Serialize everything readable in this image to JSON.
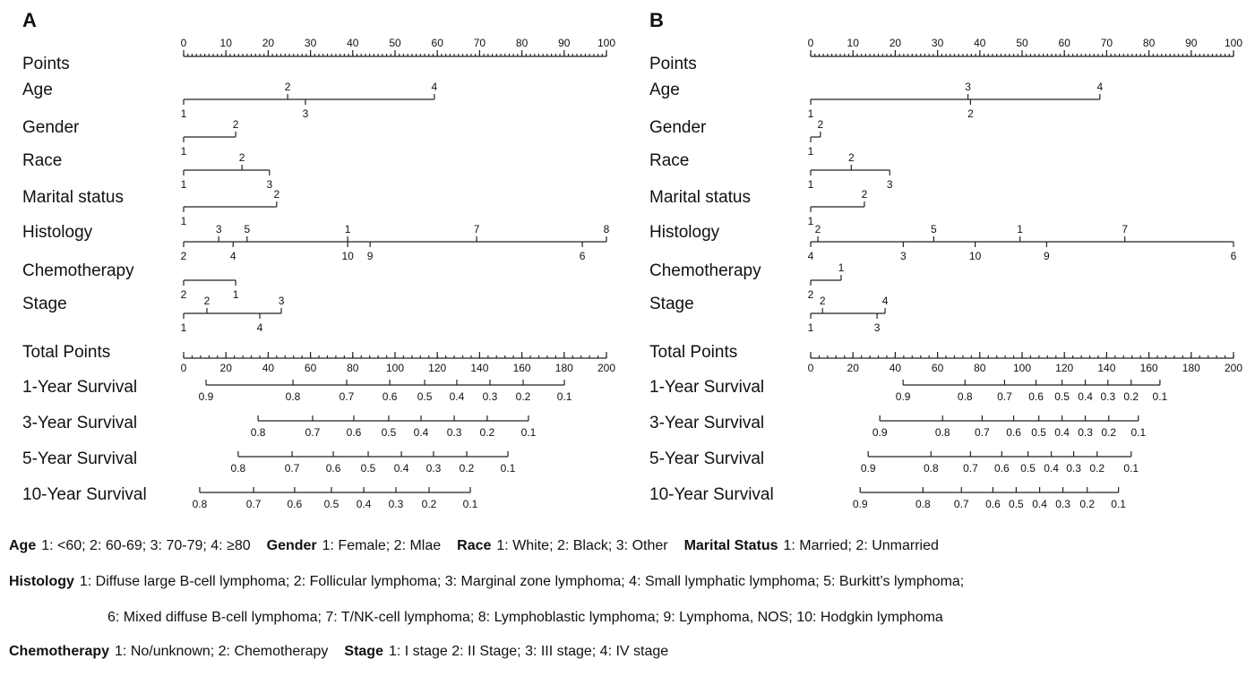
{
  "chart_data": [
    {
      "type": "nomogram",
      "panel": "A",
      "points_axis": {
        "label": "Points",
        "xlim": [
          0,
          100
        ],
        "xticks": [
          0,
          10,
          20,
          30,
          40,
          50,
          60,
          70,
          80,
          90,
          100
        ],
        "minor_step": 1
      },
      "variables": [
        {
          "name": "Age",
          "levels": [
            {
              "label": "1",
              "points": 0,
              "side": "below"
            },
            {
              "label": "2",
              "points": 24.6,
              "side": "above"
            },
            {
              "label": "3",
              "points": 28.8,
              "side": "below"
            },
            {
              "label": "4",
              "points": 59.3,
              "side": "above"
            }
          ]
        },
        {
          "name": "Gender",
          "levels": [
            {
              "label": "1",
              "points": 0,
              "side": "below"
            },
            {
              "label": "2",
              "points": 12.3,
              "side": "above"
            }
          ]
        },
        {
          "name": "Race",
          "levels": [
            {
              "label": "1",
              "points": 0,
              "side": "below"
            },
            {
              "label": "2",
              "points": 13.8,
              "side": "above"
            },
            {
              "label": "3",
              "points": 20.3,
              "side": "below"
            }
          ]
        },
        {
          "name": "Marital status",
          "levels": [
            {
              "label": "1",
              "points": 0,
              "side": "below"
            },
            {
              "label": "2",
              "points": 22,
              "side": "above"
            }
          ]
        },
        {
          "name": "Histology",
          "levels": [
            {
              "label": "2",
              "points": 0,
              "side": "below"
            },
            {
              "label": "3",
              "points": 8.3,
              "side": "above"
            },
            {
              "label": "4",
              "points": 11.7,
              "side": "below"
            },
            {
              "label": "5",
              "points": 15,
              "side": "above"
            },
            {
              "label": "1",
              "points": 38.8,
              "side": "above"
            },
            {
              "label": "10",
              "points": 38.8,
              "side": "below"
            },
            {
              "label": "9",
              "points": 44.1,
              "side": "below"
            },
            {
              "label": "7",
              "points": 69.3,
              "side": "above"
            },
            {
              "label": "6",
              "points": 94.3,
              "side": "below"
            },
            {
              "label": "8",
              "points": 100,
              "side": "above"
            }
          ]
        },
        {
          "name": "Chemotherapy",
          "levels": [
            {
              "label": "2",
              "points": 0,
              "side": "below"
            },
            {
              "label": "1",
              "points": 12.3,
              "side": "below"
            }
          ]
        },
        {
          "name": "Stage",
          "levels": [
            {
              "label": "1",
              "points": 0,
              "side": "below"
            },
            {
              "label": "2",
              "points": 5.5,
              "side": "above"
            },
            {
              "label": "4",
              "points": 18,
              "side": "below"
            },
            {
              "label": "3",
              "points": 23.1,
              "side": "above"
            }
          ]
        }
      ],
      "total_axis": {
        "label": "Total Points",
        "xlim": [
          0,
          200
        ],
        "xticks": [
          0,
          20,
          40,
          60,
          80,
          100,
          120,
          140,
          160,
          180,
          200
        ],
        "minor_step": 4
      },
      "scales": [
        {
          "name": "1-Year Survival",
          "ticks": [
            {
              "value": 0.9,
              "points": 10.6
            },
            {
              "value": 0.8,
              "points": 51.7
            },
            {
              "value": 0.7,
              "points": 77.1
            },
            {
              "value": 0.6,
              "points": 97.5
            },
            {
              "value": 0.5,
              "points": 114
            },
            {
              "value": 0.4,
              "points": 129.2
            },
            {
              "value": 0.3,
              "points": 144.9
            },
            {
              "value": 0.2,
              "points": 160.6
            },
            {
              "value": 0.1,
              "points": 180.1
            }
          ]
        },
        {
          "name": "3-Year Survival",
          "ticks": [
            {
              "value": 0.8,
              "points": 35.2
            },
            {
              "value": 0.7,
              "points": 61
            },
            {
              "value": 0.6,
              "points": 80.5
            },
            {
              "value": 0.5,
              "points": 97
            },
            {
              "value": 0.4,
              "points": 112.3
            },
            {
              "value": 0.3,
              "points": 128
            },
            {
              "value": 0.2,
              "points": 143.6
            },
            {
              "value": 0.1,
              "points": 163.1
            }
          ]
        },
        {
          "name": "5-Year Survival",
          "ticks": [
            {
              "value": 0.8,
              "points": 25.8
            },
            {
              "value": 0.7,
              "points": 51.3
            },
            {
              "value": 0.6,
              "points": 70.8
            },
            {
              "value": 0.5,
              "points": 87.3
            },
            {
              "value": 0.4,
              "points": 103
            },
            {
              "value": 0.3,
              "points": 118.2
            },
            {
              "value": 0.2,
              "points": 133.9
            },
            {
              "value": 0.1,
              "points": 153.4
            }
          ]
        },
        {
          "name": "10-Year Survival",
          "ticks": [
            {
              "value": 0.8,
              "points": 7.6
            },
            {
              "value": 0.7,
              "points": 33.1
            },
            {
              "value": 0.6,
              "points": 52.5
            },
            {
              "value": 0.5,
              "points": 69.9
            },
            {
              "value": 0.4,
              "points": 85.2
            },
            {
              "value": 0.3,
              "points": 100.4
            },
            {
              "value": 0.2,
              "points": 116.1
            },
            {
              "value": 0.1,
              "points": 135.6
            }
          ]
        }
      ]
    },
    {
      "type": "nomogram",
      "panel": "B",
      "points_axis": {
        "label": "Points",
        "xlim": [
          0,
          100
        ],
        "xticks": [
          0,
          10,
          20,
          30,
          40,
          50,
          60,
          70,
          80,
          90,
          100
        ],
        "minor_step": 1
      },
      "variables": [
        {
          "name": "Age",
          "levels": [
            {
              "label": "1",
              "points": 0,
              "side": "below"
            },
            {
              "label": "3",
              "points": 37.2,
              "side": "above"
            },
            {
              "label": "2",
              "points": 37.8,
              "side": "below"
            },
            {
              "label": "4",
              "points": 68.4,
              "side": "above"
            }
          ]
        },
        {
          "name": "Gender",
          "levels": [
            {
              "label": "1",
              "points": 0,
              "side": "below"
            },
            {
              "label": "2",
              "points": 2.3,
              "side": "above"
            }
          ]
        },
        {
          "name": "Race",
          "levels": [
            {
              "label": "1",
              "points": 0,
              "side": "below"
            },
            {
              "label": "2",
              "points": 9.6,
              "side": "above"
            },
            {
              "label": "3",
              "points": 18.7,
              "side": "below"
            }
          ]
        },
        {
          "name": "Marital status",
          "levels": [
            {
              "label": "1",
              "points": 0,
              "side": "below"
            },
            {
              "label": "2",
              "points": 12.7,
              "side": "above"
            }
          ]
        },
        {
          "name": "Histology",
          "levels": [
            {
              "label": "4",
              "points": 0,
              "side": "below"
            },
            {
              "label": "2",
              "points": 1.7,
              "side": "above"
            },
            {
              "label": "3",
              "points": 21.9,
              "side": "below"
            },
            {
              "label": "5",
              "points": 29.1,
              "side": "above"
            },
            {
              "label": "10",
              "points": 38.9,
              "side": "below"
            },
            {
              "label": "1",
              "points": 49.5,
              "side": "above"
            },
            {
              "label": "9",
              "points": 55.8,
              "side": "below"
            },
            {
              "label": "7",
              "points": 74.3,
              "side": "above"
            },
            {
              "label": "6",
              "points": 100,
              "side": "below"
            }
          ]
        },
        {
          "name": "Chemotherapy",
          "levels": [
            {
              "label": "2",
              "points": 0,
              "side": "below"
            },
            {
              "label": "1",
              "points": 7.2,
              "side": "above"
            }
          ]
        },
        {
          "name": "Stage",
          "levels": [
            {
              "label": "1",
              "points": 0,
              "side": "below"
            },
            {
              "label": "2",
              "points": 2.8,
              "side": "above"
            },
            {
              "label": "3",
              "points": 15.7,
              "side": "below"
            },
            {
              "label": "4",
              "points": 17.6,
              "side": "above"
            }
          ]
        }
      ],
      "total_axis": {
        "label": "Total Points",
        "xlim": [
          0,
          200
        ],
        "xticks": [
          0,
          20,
          40,
          60,
          80,
          100,
          120,
          140,
          160,
          180,
          200
        ],
        "minor_step": 4
      },
      "scales": [
        {
          "name": "1-Year Survival",
          "ticks": [
            {
              "value": 0.9,
              "points": 43.7
            },
            {
              "value": 0.8,
              "points": 73
            },
            {
              "value": 0.7,
              "points": 91.7
            },
            {
              "value": 0.6,
              "points": 106.6
            },
            {
              "value": 0.5,
              "points": 118.9
            },
            {
              "value": 0.4,
              "points": 129.9
            },
            {
              "value": 0.3,
              "points": 140.6
            },
            {
              "value": 0.2,
              "points": 151.6
            },
            {
              "value": 0.1,
              "points": 165.2
            }
          ]
        },
        {
          "name": "3-Year Survival",
          "ticks": [
            {
              "value": 0.9,
              "points": 32.7
            },
            {
              "value": 0.8,
              "points": 62.4
            },
            {
              "value": 0.7,
              "points": 81.1
            },
            {
              "value": 0.6,
              "points": 96
            },
            {
              "value": 0.5,
              "points": 107.9
            },
            {
              "value": 0.4,
              "points": 118.9
            },
            {
              "value": 0.3,
              "points": 129.9
            },
            {
              "value": 0.2,
              "points": 141
            },
            {
              "value": 0.1,
              "points": 155
            }
          ]
        },
        {
          "name": "5-Year Survival",
          "ticks": [
            {
              "value": 0.9,
              "points": 27.2
            },
            {
              "value": 0.8,
              "points": 56.9
            },
            {
              "value": 0.7,
              "points": 75.6
            },
            {
              "value": 0.6,
              "points": 90.4
            },
            {
              "value": 0.5,
              "points": 102.8
            },
            {
              "value": 0.4,
              "points": 113.8
            },
            {
              "value": 0.3,
              "points": 124.4
            },
            {
              "value": 0.2,
              "points": 135.5
            },
            {
              "value": 0.1,
              "points": 151.6
            }
          ]
        },
        {
          "name": "10-Year Survival",
          "ticks": [
            {
              "value": 0.9,
              "points": 23.4
            },
            {
              "value": 0.8,
              "points": 53.1
            },
            {
              "value": 0.7,
              "points": 71.3
            },
            {
              "value": 0.6,
              "points": 86.2
            },
            {
              "value": 0.5,
              "points": 97.2
            },
            {
              "value": 0.4,
              "points": 108.3
            },
            {
              "value": 0.3,
              "points": 119.3
            },
            {
              "value": 0.2,
              "points": 130.8
            },
            {
              "value": 0.1,
              "points": 145.6
            }
          ]
        }
      ]
    }
  ],
  "footnote": [
    [
      {
        "key": "Age",
        "text": "1: <60; 2: 60-69; 3: 70-79; 4: ≥80"
      },
      {
        "key": "Gender",
        "text": "1: Female; 2: Mlae"
      },
      {
        "key": "Race",
        "text": "1: White; 2: Black; 3: Other"
      },
      {
        "key": "Marital Status",
        "text": "1: Married; 2: Unmarried"
      }
    ],
    [
      {
        "key": "Histology",
        "text": "1: Diffuse large B-cell lymphoma; 2: Follicular lymphoma; 3: Marginal zone lymphoma; 4: Small lymphatic lymphoma; 5: Burkitt’s lymphoma;"
      }
    ],
    [
      {
        "text": "6: Mixed diffuse B-cell lymphoma; 7: T/NK-cell lymphoma; 8: Lymphoblastic lymphoma; 9: Lymphoma, NOS; 10: Hodgkin lymphoma"
      }
    ],
    [
      {
        "key": "Chemotherapy",
        "text": "1: No/unknown; 2: Chemotherapy"
      },
      {
        "key": "Stage",
        "text": "1: I stage 2: II Stage; 3: III stage; 4: IV stage"
      }
    ]
  ]
}
